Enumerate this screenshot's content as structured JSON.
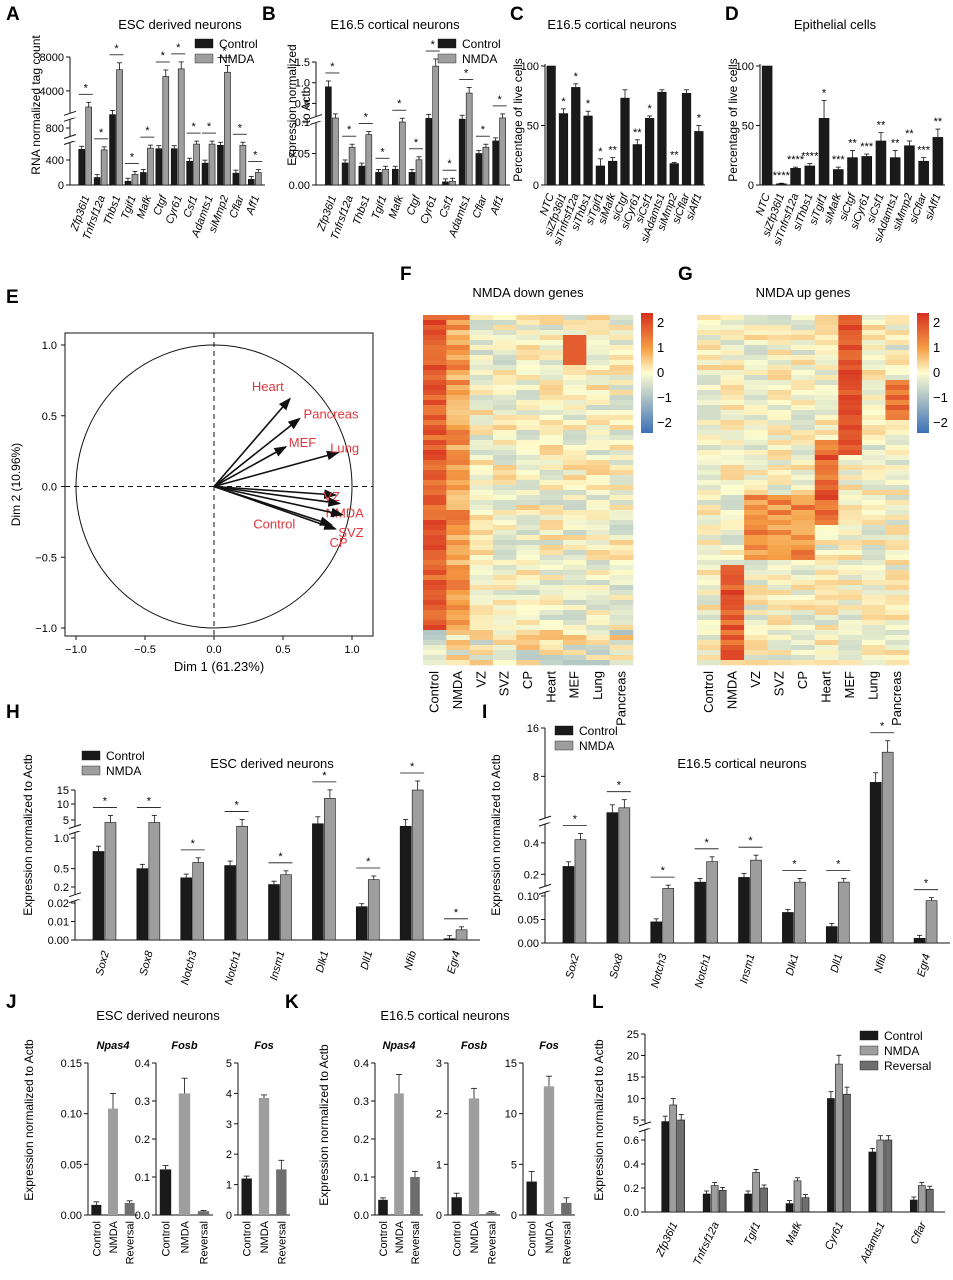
{
  "colors": {
    "control": "#1a1a1a",
    "nmda": "#9e9e9e",
    "reversal": "#6e6e6e",
    "heat_low": "#3b6fb6",
    "heat_mid": "#fdfdd0",
    "heat_high": "#d7301f",
    "pca_text": "#e0383e"
  },
  "chart_data": [
    {
      "panel": "A",
      "type": "bar",
      "title": "ESC derived neurons",
      "ylabel": "RNA normalized tag count",
      "categories": [
        "Zfp36l1",
        "Tnfrsf12a",
        "Thbs1",
        "Tgif1",
        "Mafk",
        "Ctgf",
        "Cyr61",
        "Csf1",
        "Adamts1",
        "siMmp2",
        "Cflar",
        "Aff1"
      ],
      "series": [
        {
          "name": "Control",
          "values": [
            430,
            120,
            1200,
            60,
            200,
            440,
            440,
            380,
            350,
            500,
            190,
            90
          ]
        },
        {
          "name": "NMDA",
          "values": [
            2100,
            420,
            6500,
            170,
            450,
            5700,
            6600,
            520,
            520,
            6200,
            500,
            200
          ]
        }
      ],
      "yticks": [
        "0",
        "400",
        "800",
        "4000",
        "8000"
      ],
      "legend": [
        "Control",
        "NMDA"
      ],
      "significance": "*"
    },
    {
      "panel": "B",
      "type": "bar",
      "title": "E16.5 cortical neurons",
      "ylabel": "Expression normalized to Actb",
      "categories": [
        "Zfp36l1",
        "Tnfrsf12a",
        "Thbs1",
        "Tgif1",
        "Mafk",
        "Ctgf",
        "Cyr61",
        "Csf1",
        "Adamts1",
        "Cflar",
        "Aff1"
      ],
      "series": [
        {
          "name": "Control",
          "values": [
            0.9,
            0.035,
            0.03,
            0.02,
            0.025,
            0.02,
            0.14,
            0.005,
            0.12,
            0.05,
            0.07
          ]
        },
        {
          "name": "NMDA",
          "values": [
            0.15,
            0.06,
            0.08,
            0.025,
            0.1,
            0.04,
            1.4,
            0.006,
            0.75,
            0.06,
            0.15
          ]
        }
      ],
      "yticks": [
        "0.00",
        "0.05",
        "0.1",
        "0.5",
        "1.0",
        "1.5"
      ],
      "legend": [
        "Control",
        "NMDA"
      ],
      "significance": "*"
    },
    {
      "panel": "C",
      "type": "bar",
      "title": "E16.5 cortical neurons",
      "ylabel": "Percentage of live cells",
      "categories": [
        "NTC",
        "siZfp36l1",
        "siTnfrsf12a",
        "siThbs1",
        "siTgif1",
        "siMafk",
        "siCtgf",
        "siCyr61",
        "siCsf1",
        "siAdamts1",
        "siMmp2",
        "siCflar",
        "siAff1"
      ],
      "values": [
        100,
        60,
        82,
        58,
        16,
        20,
        73,
        34,
        56,
        78,
        18,
        77,
        45
      ],
      "errors": [
        0,
        4,
        3,
        4,
        6,
        3,
        7,
        4,
        2,
        2,
        1,
        3,
        5
      ],
      "labels": [
        "",
        "*",
        "*",
        "*",
        "*",
        "**",
        "",
        "**",
        "*",
        "",
        "**",
        "",
        "*"
      ],
      "yticks": [
        "0",
        "50",
        "100"
      ],
      "ylim": [
        0,
        100
      ]
    },
    {
      "panel": "D",
      "type": "bar",
      "title": "Epithelial cells",
      "ylabel": "Percentage of live cells",
      "categories": [
        "NTC",
        "siZfp36l1",
        "siTnfrsf12a",
        "siThbs1",
        "siTgif1",
        "siMafk",
        "siCtgf",
        "siCyr61",
        "siCsf1",
        "siAdamts1",
        "siMmp2",
        "siCflar",
        "siAff1"
      ],
      "values": [
        100,
        1,
        14,
        16,
        56,
        13,
        23,
        24,
        37,
        23,
        33,
        20,
        40
      ],
      "errors": [
        0,
        0.5,
        1,
        2,
        15,
        2,
        6,
        2,
        7,
        6,
        4,
        3,
        7
      ],
      "labels": [
        "",
        "****",
        "****",
        "****",
        "*",
        "***",
        "**",
        "***",
        "**",
        "**",
        "**",
        "***",
        "**"
      ],
      "yticks": [
        "0",
        "50",
        "100"
      ],
      "ylim": [
        0,
        100
      ]
    },
    {
      "panel": "E",
      "type": "scatter",
      "title": "",
      "xlabel": "Dim 1 (61.23%)",
      "ylabel": "Dim 2 (10.96%)",
      "xlim": [
        -1.0,
        1.0
      ],
      "ylim": [
        -1.0,
        1.0
      ],
      "xticks": [
        "-1.0",
        "-0.5",
        "0.0",
        "0.5",
        "1.0"
      ],
      "yticks": [
        "-1.0",
        "-0.5",
        "0.0",
        "0.5",
        "1.0"
      ],
      "vectors": [
        {
          "name": "Heart",
          "x": 0.55,
          "y": 0.62
        },
        {
          "name": "Pancreas",
          "x": 0.62,
          "y": 0.48
        },
        {
          "name": "MEF",
          "x": 0.52,
          "y": 0.28
        },
        {
          "name": "Lung",
          "x": 0.9,
          "y": 0.24
        },
        {
          "name": "VZ",
          "x": 0.88,
          "y": -0.06
        },
        {
          "name": "NMDA",
          "x": 0.91,
          "y": -0.12
        },
        {
          "name": "SVZ",
          "x": 0.93,
          "y": -0.2
        },
        {
          "name": "Control",
          "x": 0.85,
          "y": -0.27
        },
        {
          "name": "CP",
          "x": 0.88,
          "y": -0.3
        }
      ]
    },
    {
      "panel": "F",
      "type": "heatmap",
      "title": "NMDA down genes",
      "columns": [
        "Control",
        "NMDA",
        "VZ",
        "SVZ",
        "CP",
        "Heart",
        "MEF",
        "Lung",
        "Pancreas"
      ],
      "colorbar_ticks": [
        "2",
        "1",
        "0",
        "−1",
        "−2"
      ]
    },
    {
      "panel": "G",
      "type": "heatmap",
      "title": "NMDA up genes",
      "columns": [
        "Control",
        "NMDA",
        "VZ",
        "SVZ",
        "CP",
        "Heart",
        "MEF",
        "Lung",
        "Pancreas"
      ],
      "colorbar_ticks": [
        "2",
        "1",
        "0",
        "−1",
        "−2"
      ]
    },
    {
      "panel": "H",
      "type": "bar",
      "title": "ESC derived neurons",
      "ylabel": "Expression normalized to Actb",
      "categories": [
        "Sox2",
        "Sox8",
        "Notch3",
        "Notch1",
        "Insm1",
        "Dlk1",
        "Dll1",
        "Nfib",
        "Egr4"
      ],
      "series": [
        {
          "name": "Control",
          "values": [
            0.78,
            0.5,
            0.35,
            0.55,
            0.24,
            3.5,
            0.018,
            2.5,
            0.0007
          ]
        },
        {
          "name": "NMDA",
          "values": [
            4.0,
            4.0,
            0.6,
            2.5,
            0.4,
            12.0,
            0.32,
            18.0,
            0.0055
          ]
        }
      ],
      "yticks": [
        "0.00",
        "0.01",
        "0.02",
        "0.2",
        "0.5",
        "1.0",
        "5",
        "10",
        "15"
      ],
      "legend": [
        "Control",
        "NMDA"
      ],
      "significance": "*"
    },
    {
      "panel": "I",
      "type": "bar",
      "title": "E16.5 cortical neurons",
      "ylabel": "Expression normalized to Actb",
      "categories": [
        "Sox2",
        "Sox8",
        "Notch3",
        "Notch1",
        "Insm1",
        "Dlk1",
        "Dll1",
        "Nfib",
        "Egr4"
      ],
      "series": [
        {
          "name": "Control",
          "values": [
            0.25,
            2.0,
            0.045,
            0.15,
            0.18,
            0.065,
            0.035,
            7.0,
            0.01
          ]
        },
        {
          "name": "NMDA",
          "values": [
            0.42,
            2.8,
            0.11,
            0.28,
            0.29,
            0.15,
            0.15,
            12.0,
            0.09
          ]
        }
      ],
      "yticks": [
        "0.00",
        "0.05",
        "0.10",
        "0.2",
        "0.4",
        "8",
        "16"
      ],
      "legend": [
        "Control",
        "NMDA"
      ],
      "significance": "*"
    },
    {
      "panel": "J",
      "type": "bar",
      "title": "ESC derived neurons",
      "ylabel": "Expression normalized to Actb",
      "subplots": [
        {
          "gene": "Npas4",
          "categories": [
            "Control",
            "NMDA",
            "Reversal"
          ],
          "values": [
            0.01,
            0.105,
            0.012
          ],
          "errors": [
            0.003,
            0.015,
            0.002
          ],
          "yticks": [
            "0.00",
            "0.05",
            "0.10",
            "0.15"
          ],
          "ylim": [
            0,
            0.15
          ]
        },
        {
          "gene": "Fosb",
          "categories": [
            "Control",
            "NMDA",
            "Reversal"
          ],
          "values": [
            0.12,
            0.32,
            0.01
          ],
          "errors": [
            0.01,
            0.04,
            0.002
          ],
          "yticks": [
            "0.0",
            "0.1",
            "0.2",
            "0.3",
            "0.4"
          ],
          "ylim": [
            0,
            0.4
          ]
        },
        {
          "gene": "Fos",
          "categories": [
            "Control",
            "NMDA",
            "Reversal"
          ],
          "values": [
            1.2,
            3.85,
            1.5
          ],
          "errors": [
            0.08,
            0.1,
            0.3
          ],
          "yticks": [
            "0",
            "1",
            "2",
            "3",
            "4",
            "5"
          ],
          "ylim": [
            0,
            5
          ]
        }
      ]
    },
    {
      "panel": "K",
      "type": "bar",
      "title": "E16.5 cortical neurons",
      "ylabel": "Expression normalized to Actb",
      "subplots": [
        {
          "gene": "Npas4",
          "categories": [
            "Control",
            "NMDA",
            "Reversal"
          ],
          "values": [
            0.04,
            0.32,
            0.1
          ],
          "errors": [
            0.005,
            0.05,
            0.015
          ],
          "yticks": [
            "0.0",
            "0.1",
            "0.2",
            "0.3",
            "0.4"
          ],
          "ylim": [
            0,
            0.4
          ]
        },
        {
          "gene": "Fosb",
          "categories": [
            "Control",
            "NMDA",
            "Reversal"
          ],
          "values": [
            0.35,
            2.3,
            0.05
          ],
          "errors": [
            0.08,
            0.2,
            0.02
          ],
          "yticks": [
            "0",
            "1",
            "2",
            "3"
          ],
          "ylim": [
            0,
            3
          ]
        },
        {
          "gene": "Fos",
          "categories": [
            "Control",
            "NMDA",
            "Reversal"
          ],
          "values": [
            3.3,
            12.7,
            1.2
          ],
          "errors": [
            1.0,
            1.0,
            0.5
          ],
          "yticks": [
            "0",
            "5",
            "10",
            "15"
          ],
          "ylim": [
            0,
            15
          ]
        }
      ]
    },
    {
      "panel": "L",
      "type": "bar",
      "title": "",
      "ylabel": "Expression normalized to Actb",
      "categories": [
        "Zfp36l1",
        "Tnfrsf12a",
        "Tgif1",
        "Mafk",
        "Cyr61",
        "Adamts1",
        "Cflar"
      ],
      "series": [
        {
          "name": "Control",
          "values": [
            4.0,
            0.15,
            0.15,
            0.07,
            10.0,
            0.5,
            0.1
          ]
        },
        {
          "name": "NMDA",
          "values": [
            8.5,
            0.22,
            0.33,
            0.26,
            18.0,
            0.6,
            0.22
          ]
        },
        {
          "name": "Reversal",
          "values": [
            5.0,
            0.18,
            0.2,
            0.12,
            11.0,
            0.6,
            0.19
          ]
        }
      ],
      "yticks": [
        "0.0",
        "0.2",
        "0.4",
        "0.6",
        "5",
        "10",
        "15",
        "20",
        "25"
      ],
      "legend": [
        "Control",
        "NMDA",
        "Reversal"
      ]
    }
  ]
}
